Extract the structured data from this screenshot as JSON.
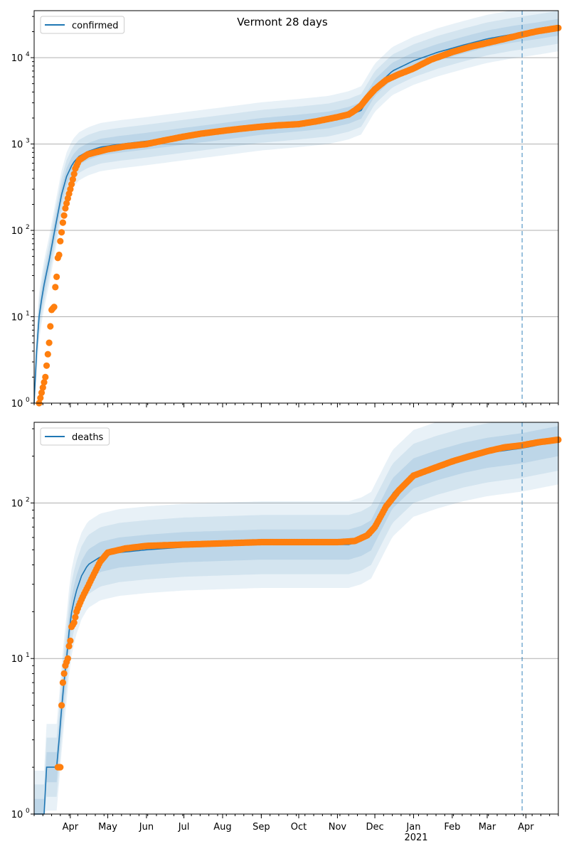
{
  "figure": {
    "title": "Vermont 28 days",
    "year_label": "2021"
  },
  "colors": {
    "model_line": "#1f77b4",
    "observed_points": "#ff7f0e",
    "band": "#1f77b4",
    "grid": "#b0b0b0",
    "forecast_marker": "#1f77b4"
  },
  "chart_data": [
    {
      "type": "line",
      "panel": "confirmed",
      "y_scale": "log",
      "ylim": [
        1,
        35000
      ],
      "xlim": [
        "2020-03-03",
        "2021-04-27"
      ],
      "grid": "horizontal at major ticks",
      "legend": {
        "entries": [
          "confirmed"
        ],
        "placement": "top-left"
      },
      "y_ticks": [
        {
          "value": 1,
          "base": "10",
          "exp": "0"
        },
        {
          "value": 10,
          "base": "10",
          "exp": "1"
        },
        {
          "value": 100,
          "base": "10",
          "exp": "2"
        },
        {
          "value": 1000,
          "base": "10",
          "exp": "3"
        },
        {
          "value": 10000,
          "base": "10",
          "exp": "4"
        }
      ],
      "forecast_start": "2021-03-29",
      "series": [
        {
          "name": "confirmed",
          "kind": "model median",
          "x": [
            "2020-03-03",
            "2020-03-06",
            "2020-03-10",
            "2020-03-15",
            "2020-03-20",
            "2020-03-25",
            "2020-03-29",
            "2020-04-03",
            "2020-04-08",
            "2020-04-15",
            "2020-04-25",
            "2020-05-10",
            "2020-06-01",
            "2020-07-01",
            "2020-08-01",
            "2020-09-01",
            "2020-10-01",
            "2020-10-25",
            "2020-11-10",
            "2020-11-20",
            "2020-12-01",
            "2020-12-15",
            "2021-01-01",
            "2021-01-20",
            "2021-02-10",
            "2021-03-01",
            "2021-03-20",
            "2021-04-10",
            "2021-04-27"
          ],
          "y": [
            1,
            8,
            20,
            45,
            110,
            260,
            420,
            600,
            720,
            820,
            920,
            990,
            1080,
            1230,
            1400,
            1600,
            1750,
            1900,
            2150,
            2450,
            4500,
            7000,
            9200,
            11500,
            14000,
            16500,
            18500,
            20500,
            22500
          ]
        },
        {
          "name": "observed",
          "kind": "reported cumulative cases",
          "x": [
            "2020-03-07",
            "2020-03-12",
            "2020-03-15",
            "2020-03-17",
            "2020-03-19",
            "2020-03-20",
            "2020-03-21",
            "2020-03-22",
            "2020-03-23",
            "2020-03-24",
            "2020-03-25",
            "2020-03-26",
            "2020-03-28",
            "2020-03-30",
            "2020-04-01",
            "2020-04-03",
            "2020-04-05",
            "2020-04-08",
            "2020-04-15",
            "2020-05-01",
            "2020-05-15",
            "2020-06-01",
            "2020-06-15",
            "2020-07-01",
            "2020-07-15",
            "2020-08-01",
            "2020-08-15",
            "2020-09-01",
            "2020-09-15",
            "2020-10-01",
            "2020-10-15",
            "2020-11-01",
            "2020-11-10",
            "2020-11-15",
            "2020-11-20",
            "2020-11-25",
            "2020-12-01",
            "2020-12-10",
            "2020-12-20",
            "2021-01-01",
            "2021-01-15",
            "2021-02-01",
            "2021-02-15",
            "2021-03-01",
            "2021-03-15",
            "2021-03-29",
            "2021-04-10",
            "2021-04-20",
            "2021-04-27"
          ],
          "y": [
            1,
            2,
            5,
            12,
            13,
            22,
            29,
            48,
            52,
            75,
            95,
            123,
            180,
            235,
            300,
            390,
            520,
            650,
            760,
            870,
            940,
            1000,
            1100,
            1220,
            1320,
            1420,
            1500,
            1590,
            1650,
            1700,
            1830,
            2050,
            2200,
            2450,
            2800,
            3450,
            4300,
            5500,
            6400,
            7500,
            9500,
            11600,
            13300,
            14800,
            16500,
            18500,
            20200,
            21300,
            22100
          ]
        }
      ]
    },
    {
      "type": "line",
      "panel": "deaths",
      "y_scale": "log",
      "ylim": [
        1,
        330
      ],
      "xlim": [
        "2020-03-03",
        "2021-04-27"
      ],
      "grid": "horizontal at major ticks",
      "legend": {
        "entries": [
          "deaths"
        ],
        "placement": "top-left"
      },
      "y_ticks": [
        {
          "value": 1,
          "base": "10",
          "exp": "0"
        },
        {
          "value": 10,
          "base": "10",
          "exp": "1"
        },
        {
          "value": 100,
          "base": "10",
          "exp": "2"
        }
      ],
      "forecast_start": "2021-03-29",
      "x_tick_labels": [
        "Apr",
        "May",
        "Jun",
        "Jul",
        "Aug",
        "Sep",
        "Oct",
        "Nov",
        "Dec",
        "Jan",
        "Feb",
        "Mar",
        "Apr"
      ],
      "series": [
        {
          "name": "deaths",
          "kind": "model median",
          "x": [
            "2020-03-03",
            "2020-03-12",
            "2020-03-13",
            "2020-03-22",
            "2020-03-23",
            "2020-03-26",
            "2020-03-29",
            "2020-04-01",
            "2020-04-05",
            "2020-04-10",
            "2020-04-15",
            "2020-04-25",
            "2020-05-10",
            "2020-06-01",
            "2020-07-01",
            "2020-08-01",
            "2020-09-01",
            "2020-10-15",
            "2020-11-10",
            "2020-11-20",
            "2020-11-28",
            "2020-12-05",
            "2020-12-15",
            "2021-01-01",
            "2021-01-20",
            "2021-02-10",
            "2021-03-01",
            "2021-03-29",
            "2021-04-27"
          ],
          "y": [
            1,
            1,
            2,
            2,
            3,
            6,
            10,
            18,
            26,
            34,
            40,
            45,
            48,
            50,
            52,
            53,
            54,
            54,
            54,
            57,
            62,
            80,
            115,
            155,
            175,
            195,
            210,
            225,
            250
          ]
        },
        {
          "name": "observed",
          "kind": "reported cumulative deaths",
          "x": [
            "2020-03-22",
            "2020-03-23",
            "2020-03-24",
            "2020-03-25",
            "2020-03-26",
            "2020-03-27",
            "2020-03-28",
            "2020-03-30",
            "2020-03-31",
            "2020-04-01",
            "2020-04-02",
            "2020-04-04",
            "2020-04-06",
            "2020-04-08",
            "2020-04-10",
            "2020-04-12",
            "2020-04-15",
            "2020-04-20",
            "2020-04-25",
            "2020-05-01",
            "2020-05-15",
            "2020-06-01",
            "2020-07-01",
            "2020-08-01",
            "2020-09-01",
            "2020-10-01",
            "2020-11-01",
            "2020-11-15",
            "2020-11-25",
            "2020-12-01",
            "2020-12-10",
            "2020-12-20",
            "2021-01-01",
            "2021-01-15",
            "2021-02-01",
            "2021-02-15",
            "2021-03-01",
            "2021-03-15",
            "2021-03-29",
            "2021-04-10",
            "2021-04-27"
          ],
          "y": [
            2,
            2,
            2,
            5,
            7,
            8,
            9,
            10,
            12,
            13,
            16,
            17,
            20,
            22,
            24,
            26,
            29,
            35,
            42,
            48,
            51,
            53,
            54,
            55,
            56,
            56,
            56,
            57,
            62,
            70,
            95,
            120,
            150,
            165,
            185,
            200,
            215,
            228,
            235,
            245,
            255
          ]
        }
      ]
    }
  ]
}
